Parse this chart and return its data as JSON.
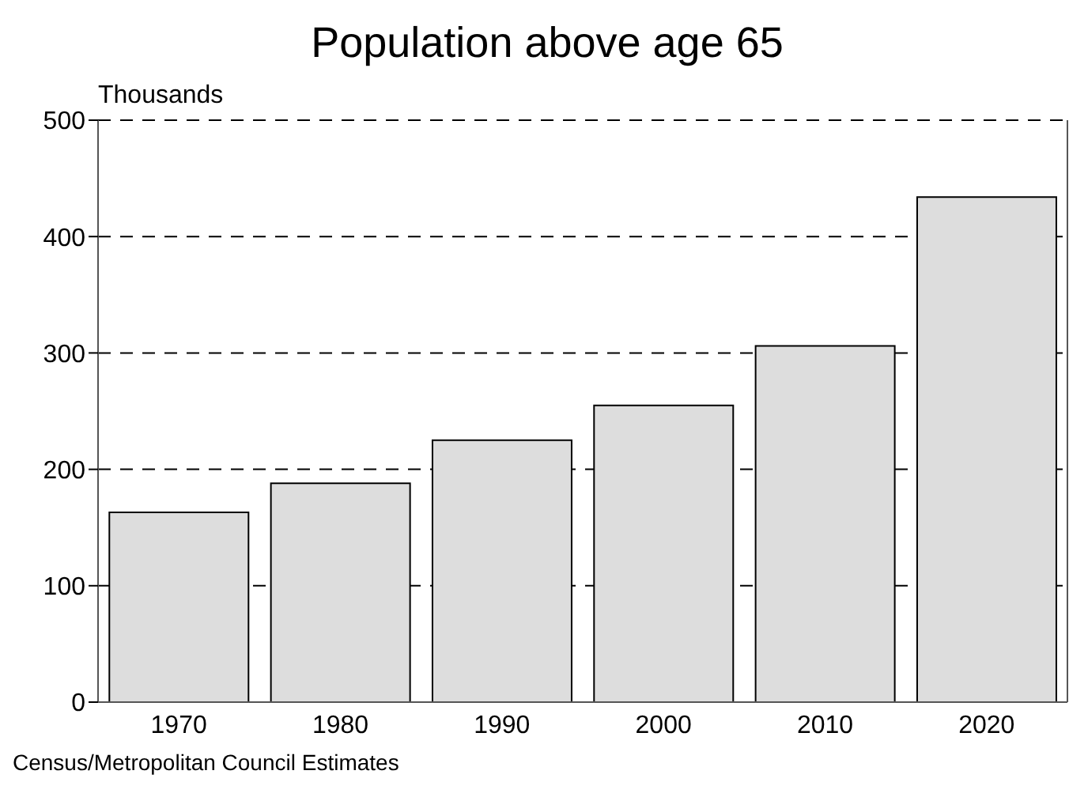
{
  "chart_data": {
    "type": "bar",
    "title": "Population above age 65",
    "ylabel": "Thousands",
    "categories": [
      "1970",
      "1980",
      "1990",
      "2000",
      "2010",
      "2020"
    ],
    "values": [
      163,
      188,
      225,
      255,
      306,
      434
    ],
    "color": "#dddddd",
    "ylim": [
      0,
      500
    ],
    "yticks": [
      0,
      100,
      200,
      300,
      400,
      500
    ],
    "grid": "y",
    "annotations": [
      "Census/Metropolitan Council Estimates"
    ]
  }
}
